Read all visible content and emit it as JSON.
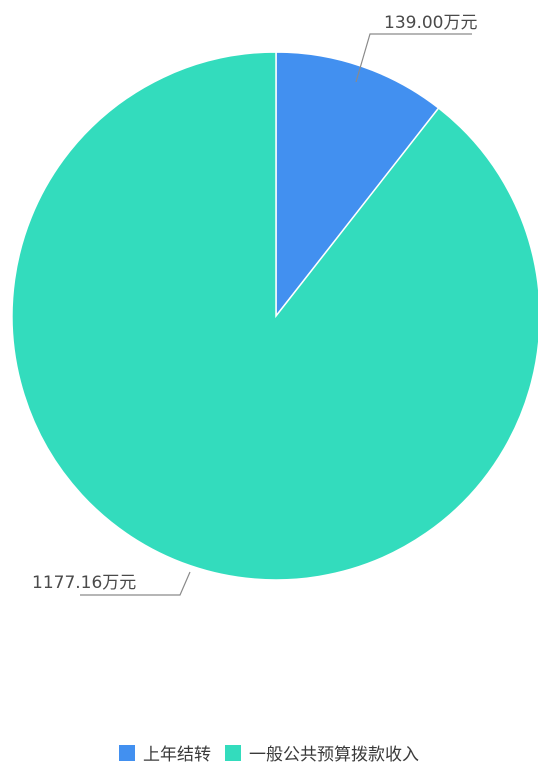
{
  "chart_data": {
    "type": "pie",
    "categories": [
      "上年结转",
      "一般公共预算拨款收入"
    ],
    "values": [
      139.0,
      1177.16
    ],
    "unit": "万元",
    "data_labels": [
      "139.00万元",
      "1177.16万元"
    ],
    "colors": [
      "#4290f0",
      "#33dcbd"
    ],
    "start_angle": "12 o'clock",
    "direction": "clockwise",
    "legend_position": "bottom-center"
  }
}
